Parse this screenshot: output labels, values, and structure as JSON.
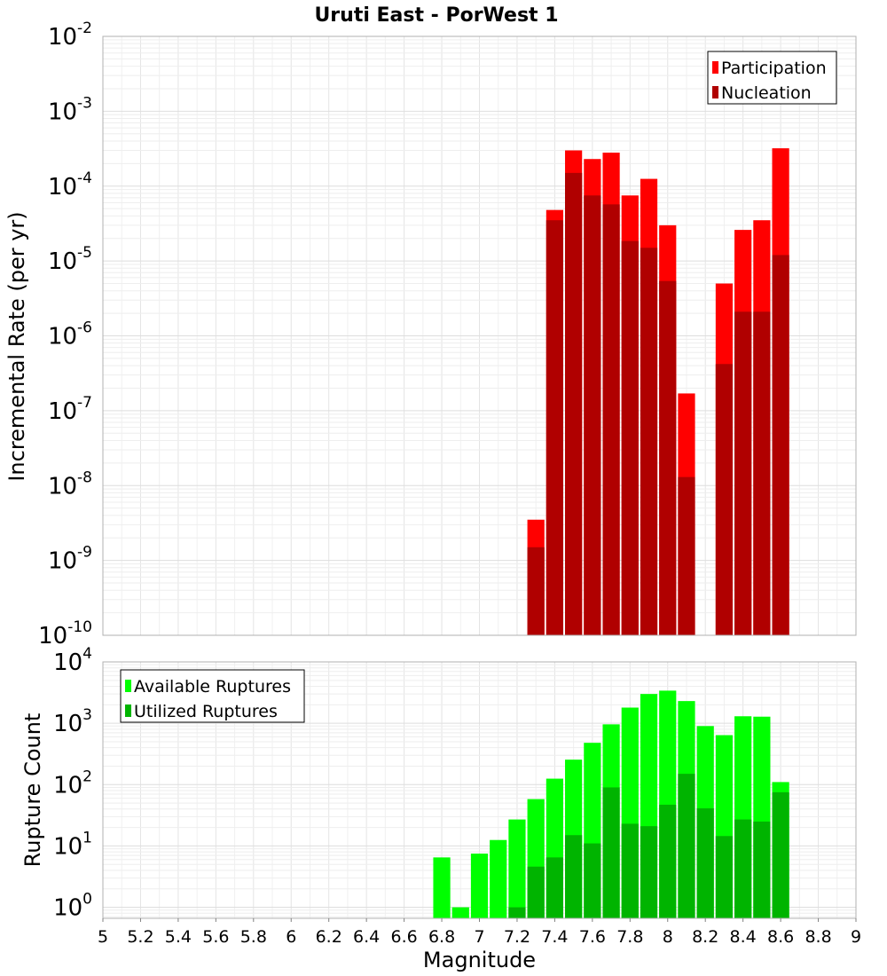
{
  "chart_data": [
    {
      "type": "bar",
      "title": "Uruti East - PorWest 1",
      "xlabel": "",
      "ylabel": "Incremental Rate (per yr)",
      "y_scale": "log",
      "ylim_exponents": [
        -10,
        -2
      ],
      "ytick_labels": [
        {
          "base": "10",
          "exp": "-10"
        },
        {
          "base": "10",
          "exp": "-9"
        },
        {
          "base": "10",
          "exp": "-8"
        },
        {
          "base": "10",
          "exp": "-7"
        },
        {
          "base": "10",
          "exp": "-6"
        },
        {
          "base": "10",
          "exp": "-5"
        },
        {
          "base": "10",
          "exp": "-4"
        },
        {
          "base": "10",
          "exp": "-3"
        },
        {
          "base": "10",
          "exp": "-2"
        }
      ],
      "grid": true,
      "legend_position": "top-right",
      "x": [
        7.3,
        7.4,
        7.5,
        7.6,
        7.7,
        7.8,
        7.9,
        8.0,
        8.1,
        8.3,
        8.4,
        8.5,
        8.6
      ],
      "series": [
        {
          "name": "Participation",
          "color": "#ff0000",
          "values": [
            3.5e-09,
            4.8e-05,
            0.0003,
            0.00023,
            0.00028,
            7.5e-05,
            0.000125,
            3e-05,
            1.7e-07,
            5e-06,
            2.6e-05,
            3.5e-05,
            0.00032
          ]
        },
        {
          "name": "Nucleation",
          "color": "#b00000",
          "values": [
            1.5e-09,
            3.5e-05,
            0.00015,
            7.5e-05,
            5.7e-05,
            1.85e-05,
            1.5e-05,
            5.4e-06,
            1.3e-08,
            4.2e-07,
            2.1e-06,
            2.1e-06,
            1.2e-05
          ]
        }
      ]
    },
    {
      "type": "bar",
      "title": "",
      "xlabel": "Magnitude",
      "ylabel": "Rupture Count",
      "y_scale": "log",
      "ylim_exponents": [
        -0.18,
        4
      ],
      "ytick_labels": [
        {
          "base": "10",
          "exp": "0"
        },
        {
          "base": "10",
          "exp": "1"
        },
        {
          "base": "10",
          "exp": "2"
        },
        {
          "base": "10",
          "exp": "3"
        },
        {
          "base": "10",
          "exp": "4"
        }
      ],
      "xlim": [
        5,
        9
      ],
      "xtick_labels": [
        "5",
        "5.2",
        "5.4",
        "5.6",
        "5.8",
        "6",
        "6.2",
        "6.4",
        "6.6",
        "6.8",
        "7",
        "7.2",
        "7.4",
        "7.6",
        "7.8",
        "8",
        "8.2",
        "8.4",
        "8.6",
        "8.8",
        "9"
      ],
      "grid": true,
      "legend_position": "top-left",
      "x": [
        6.8,
        6.9,
        7.0,
        7.1,
        7.2,
        7.3,
        7.4,
        7.5,
        7.6,
        7.7,
        7.8,
        7.9,
        8.0,
        8.1,
        8.2,
        8.3,
        8.4,
        8.5,
        8.6
      ],
      "series": [
        {
          "name": "Available Ruptures",
          "color": "#00ff00",
          "values": [
            6.5,
            1,
            7.5,
            12.5,
            27,
            58,
            125,
            255,
            480,
            960,
            1800,
            3000,
            3400,
            2300,
            900,
            640,
            1300,
            1280,
            110
          ]
        },
        {
          "name": "Utilized Ruptures",
          "color": "#00b400",
          "values": [
            0,
            0,
            0,
            0,
            1,
            4.6,
            6.5,
            15,
            11,
            90,
            23,
            21,
            47,
            150,
            41,
            14.5,
            27,
            25,
            75
          ]
        }
      ]
    }
  ]
}
